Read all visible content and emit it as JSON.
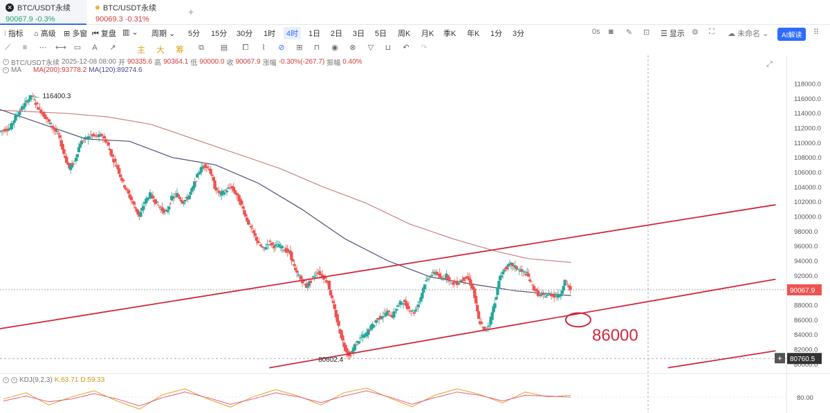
{
  "tabs": [
    {
      "symbol": "BTC/USDT永续",
      "price": "90067.9",
      "change": "-0.3%"
    },
    {
      "symbol": "BTC/USDT永续",
      "price": "90069.3",
      "change": "-0.31%"
    }
  ],
  "toolbar": {
    "indicator": "指标",
    "advanced": "高级",
    "multi_window": "多窗",
    "replay": "复盘",
    "period": "周期",
    "intervals": [
      "5分",
      "15分",
      "30分",
      "1时",
      "4时",
      "1日",
      "2日",
      "3日",
      "5日",
      "周K",
      "月K",
      "季K",
      "年K",
      "1分",
      "3分"
    ],
    "active_interval": "4时",
    "countdown": "0s",
    "display": "显示",
    "layout_name": "未命名",
    "ai_label": "AI解读"
  },
  "drawbar": {
    "labels": [
      "主",
      "大",
      "筹"
    ]
  },
  "ohlc": {
    "symbol": "BTC/USDT永续",
    "datetime": "2025-12-08 08:00",
    "open_label": "开",
    "open": "90335.6",
    "high_label": "高",
    "high": "90364.1",
    "low_label": "低",
    "low": "90000.0",
    "close_label": "收",
    "close": "90067.9",
    "change_label": "涨幅",
    "change": "-0.30%(-267.7)",
    "amp_label": "振幅",
    "amp": "0.40%"
  },
  "ma": {
    "label": "MA",
    "ma200": "MA(200):93778.2",
    "ma120": "MA(120):89274.6"
  },
  "kdj": {
    "label": "KDJ(9,2,3)",
    "k": "K:63.71",
    "d": "D:59.33",
    "axis_tick": "80.00"
  },
  "colors": {
    "up": "#26a69a",
    "down": "#ef5350",
    "ma200": "#c98484",
    "ma120": "#4a4f7a",
    "channel": "#d0283c",
    "accent": "#2e6bff"
  },
  "chart_data": {
    "type": "candlestick",
    "title": "BTC/USDT永续",
    "interval": "4时",
    "ylim": [
      79000,
      119500
    ],
    "yticks": [
      80000,
      82000,
      84000,
      86000,
      88000,
      90000,
      92000,
      94000,
      96000,
      98000,
      100000,
      102000,
      104000,
      106000,
      108000,
      110000,
      112000,
      114000,
      116000,
      118000
    ],
    "current_price": 90067.9,
    "current_price_label": "90067.9",
    "crosshair_price_label": "80760.5",
    "annotations": [
      {
        "text": "116400.3",
        "value": 116400.3,
        "kind": "high"
      },
      {
        "text": "80602.4",
        "value": 80602.4,
        "kind": "low"
      },
      {
        "text": "86000",
        "value": 86000,
        "kind": "target"
      }
    ],
    "price_path": [
      [
        0,
        111500
      ],
      [
        0.5,
        111800
      ],
      [
        1,
        112000
      ],
      [
        1.5,
        113500
      ],
      [
        2,
        114500
      ],
      [
        2.5,
        115500
      ],
      [
        3,
        116400
      ],
      [
        3.5,
        115000
      ],
      [
        4,
        114000
      ],
      [
        4.5,
        113000
      ],
      [
        5,
        112000
      ],
      [
        5.5,
        111000
      ],
      [
        6,
        108500
      ],
      [
        6.5,
        106500
      ],
      [
        7,
        107500
      ],
      [
        7.5,
        110000
      ],
      [
        8,
        110500
      ],
      [
        8.5,
        111000
      ],
      [
        9,
        110800
      ],
      [
        9.5,
        111000
      ],
      [
        10,
        110000
      ],
      [
        10.5,
        108000
      ],
      [
        11,
        106500
      ],
      [
        11.5,
        104500
      ],
      [
        12,
        103000
      ],
      [
        12.5,
        101500
      ],
      [
        13,
        100000
      ],
      [
        13.5,
        102000
      ],
      [
        14,
        103000
      ],
      [
        14.5,
        102000
      ],
      [
        15,
        101000
      ],
      [
        15.5,
        100500
      ],
      [
        16,
        102500
      ],
      [
        16.5,
        103000
      ],
      [
        17,
        102000
      ],
      [
        17.5,
        102500
      ],
      [
        18,
        104000
      ],
      [
        18.5,
        106000
      ],
      [
        19,
        107000
      ],
      [
        19.5,
        106500
      ],
      [
        20,
        104000
      ],
      [
        20.5,
        103000
      ],
      [
        21,
        103500
      ],
      [
        21.5,
        104000
      ],
      [
        22,
        103000
      ],
      [
        22.5,
        101500
      ],
      [
        23,
        99500
      ],
      [
        23.5,
        98000
      ],
      [
        24,
        96500
      ],
      [
        24.5,
        95500
      ],
      [
        25,
        96500
      ],
      [
        25.5,
        96000
      ],
      [
        26,
        96000
      ],
      [
        26.5,
        95500
      ],
      [
        27,
        95000
      ],
      [
        27.5,
        92500
      ],
      [
        28,
        91500
      ],
      [
        28.5,
        90500
      ],
      [
        29,
        91500
      ],
      [
        29.5,
        92500
      ],
      [
        30,
        92000
      ],
      [
        30.5,
        91000
      ],
      [
        31,
        88000
      ],
      [
        31.5,
        85000
      ],
      [
        32,
        82500
      ],
      [
        32.5,
        81000
      ],
      [
        33,
        82500
      ],
      [
        33.5,
        83500
      ],
      [
        34,
        84000
      ],
      [
        34.5,
        85000
      ],
      [
        35,
        86000
      ],
      [
        35.5,
        86500
      ],
      [
        36,
        87000
      ],
      [
        36.5,
        86500
      ],
      [
        37,
        88000
      ],
      [
        37.5,
        88500
      ],
      [
        38,
        87500
      ],
      [
        38.5,
        87000
      ],
      [
        39,
        88500
      ],
      [
        39.5,
        91000
      ],
      [
        40,
        92000
      ],
      [
        40.5,
        92500
      ],
      [
        41,
        91500
      ],
      [
        41.5,
        92000
      ],
      [
        42,
        91000
      ],
      [
        42.5,
        91000
      ],
      [
        43,
        91500
      ],
      [
        43.5,
        91700
      ],
      [
        44,
        90000
      ],
      [
        44.5,
        86000
      ],
      [
        45,
        84500
      ],
      [
        45.5,
        85500
      ],
      [
        46,
        88500
      ],
      [
        46.5,
        92000
      ],
      [
        47,
        93000
      ],
      [
        47.5,
        93500
      ],
      [
        48,
        93000
      ],
      [
        48.5,
        92500
      ],
      [
        49,
        92200
      ],
      [
        49.5,
        90500
      ],
      [
        50,
        89500
      ],
      [
        50.5,
        89200
      ],
      [
        51,
        89500
      ],
      [
        51.5,
        89300
      ],
      [
        52,
        89200
      ],
      [
        52.5,
        91300
      ],
      [
        53,
        90067
      ]
    ],
    "ma200_path": [
      [
        0,
        114400
      ],
      [
        3,
        114200
      ],
      [
        6,
        114000
      ],
      [
        10,
        113500
      ],
      [
        14,
        112500
      ],
      [
        18,
        110500
      ],
      [
        22,
        108500
      ],
      [
        26,
        106500
      ],
      [
        30,
        104000
      ],
      [
        34,
        101800
      ],
      [
        38,
        99000
      ],
      [
        42,
        97000
      ],
      [
        46,
        95300
      ],
      [
        49,
        94300
      ],
      [
        53,
        93778
      ]
    ],
    "ma120_path": [
      [
        0,
        114500
      ],
      [
        4,
        112500
      ],
      [
        8,
        110500
      ],
      [
        12,
        110200
      ],
      [
        16,
        108000
      ],
      [
        20,
        107000
      ],
      [
        24,
        104500
      ],
      [
        28,
        101000
      ],
      [
        32,
        97000
      ],
      [
        36,
        94000
      ],
      [
        40,
        91800
      ],
      [
        44,
        90800
      ],
      [
        48,
        89900
      ],
      [
        53,
        89274
      ]
    ],
    "trendlines": [
      {
        "name": "upper-channel",
        "from": [
          0,
          84800
        ],
        "to": [
          72,
          101600
        ]
      },
      {
        "name": "lower-channel",
        "from": [
          25,
          79500
        ],
        "to": [
          72,
          91500
        ]
      },
      {
        "name": "lower-channel-extension",
        "from": [
          62,
          79500
        ],
        "to": [
          72,
          81800
        ]
      }
    ],
    "x_range": [
      0,
      73
    ],
    "kdj_series": {
      "k": [
        55,
        70,
        40,
        60,
        75,
        50,
        30,
        65,
        80,
        55,
        35,
        60,
        78,
        62,
        40,
        70,
        82,
        58,
        36,
        64,
        80,
        66,
        45,
        72,
        60,
        63.71
      ],
      "d": [
        50,
        62,
        48,
        55,
        68,
        55,
        38,
        58,
        72,
        58,
        42,
        55,
        70,
        60,
        46,
        62,
        75,
        60,
        42,
        58,
        72,
        64,
        50,
        64,
        62,
        59.33
      ]
    }
  }
}
